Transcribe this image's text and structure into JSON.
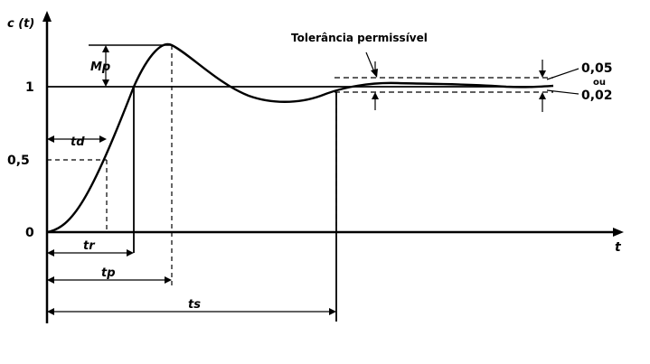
{
  "labels": {
    "y_axis": "c (t)",
    "x_axis": "t",
    "tick_1": "1",
    "tick_half": "0,5",
    "tick_0": "0",
    "overshoot": "Mp",
    "delay_time": "td",
    "rise_time": "tr",
    "peak_time": "tp",
    "settling_time": "ts",
    "tolerance_title": "Tolerância permissível",
    "tol_005": "0,05",
    "tol_ou": "ou",
    "tol_002": "0,02"
  }
}
